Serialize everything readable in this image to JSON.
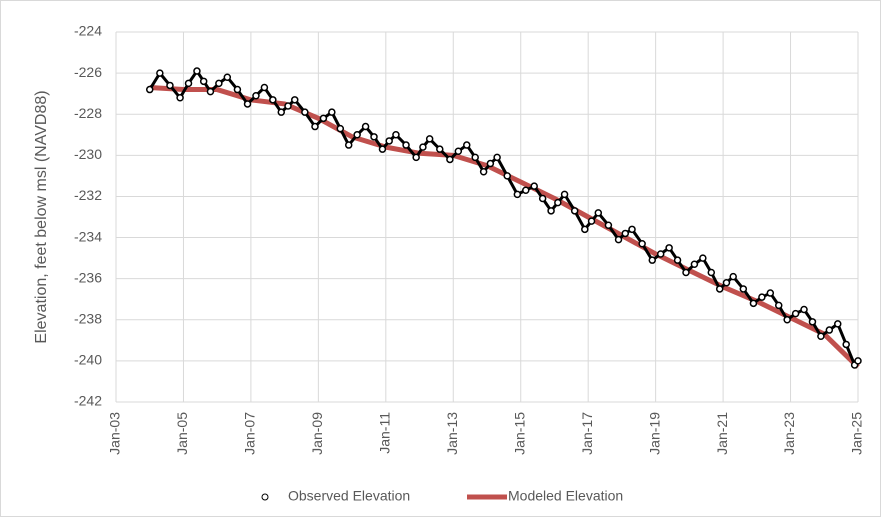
{
  "chart_data": {
    "type": "line",
    "ylabel": "Elevation, feet below msl (NAVD88)",
    "xlim": [
      2003,
      2025
    ],
    "xticks": [
      {
        "value": 2003,
        "label": "Jan-03"
      },
      {
        "value": 2005,
        "label": "Jan-05"
      },
      {
        "value": 2007,
        "label": "Jan-07"
      },
      {
        "value": 2009,
        "label": "Jan-09"
      },
      {
        "value": 2011,
        "label": "Jan-11"
      },
      {
        "value": 2013,
        "label": "Jan-13"
      },
      {
        "value": 2015,
        "label": "Jan-15"
      },
      {
        "value": 2017,
        "label": "Jan-17"
      },
      {
        "value": 2019,
        "label": "Jan-19"
      },
      {
        "value": 2021,
        "label": "Jan-21"
      },
      {
        "value": 2023,
        "label": "Jan-23"
      },
      {
        "value": 2025,
        "label": "Jan-25"
      }
    ],
    "ylim": [
      -242,
      -224
    ],
    "yticks": [
      -242,
      -240,
      -238,
      -236,
      -234,
      -232,
      -230,
      -228,
      -226,
      -224
    ],
    "grid": true,
    "legend": "bottom",
    "series": [
      {
        "name": "Observed Elevation",
        "color": "#000000",
        "marker": "circle",
        "x": [
          2004.0,
          2004.3,
          2004.6,
          2004.9,
          2005.15,
          2005.4,
          2005.6,
          2005.8,
          2006.05,
          2006.3,
          2006.6,
          2006.9,
          2007.15,
          2007.4,
          2007.65,
          2007.9,
          2008.1,
          2008.3,
          2008.6,
          2008.9,
          2009.15,
          2009.4,
          2009.65,
          2009.9,
          2010.15,
          2010.4,
          2010.65,
          2010.9,
          2011.1,
          2011.3,
          2011.6,
          2011.9,
          2012.1,
          2012.3,
          2012.6,
          2012.9,
          2013.15,
          2013.4,
          2013.65,
          2013.9,
          2014.1,
          2014.3,
          2014.6,
          2014.9,
          2015.15,
          2015.4,
          2015.65,
          2015.9,
          2016.1,
          2016.3,
          2016.6,
          2016.9,
          2017.1,
          2017.3,
          2017.6,
          2017.9,
          2018.1,
          2018.3,
          2018.6,
          2018.9,
          2019.15,
          2019.4,
          2019.65,
          2019.9,
          2020.15,
          2020.4,
          2020.65,
          2020.9,
          2021.1,
          2021.3,
          2021.6,
          2021.9,
          2022.15,
          2022.4,
          2022.65,
          2022.9,
          2023.15,
          2023.4,
          2023.65,
          2023.9,
          2024.15,
          2024.4,
          2024.65,
          2024.9,
          2025.0
        ],
        "values": [
          -226.8,
          -226.0,
          -226.6,
          -227.2,
          -226.5,
          -225.9,
          -226.4,
          -226.9,
          -226.5,
          -226.2,
          -226.8,
          -227.5,
          -227.1,
          -226.7,
          -227.3,
          -227.9,
          -227.6,
          -227.3,
          -227.9,
          -228.6,
          -228.2,
          -227.9,
          -228.7,
          -229.5,
          -229.0,
          -228.6,
          -229.1,
          -229.7,
          -229.3,
          -229.0,
          -229.5,
          -230.1,
          -229.6,
          -229.2,
          -229.7,
          -230.2,
          -229.8,
          -229.5,
          -230.1,
          -230.8,
          -230.4,
          -230.1,
          -231.0,
          -231.9,
          -231.7,
          -231.5,
          -232.1,
          -232.7,
          -232.3,
          -231.9,
          -232.7,
          -233.6,
          -233.2,
          -232.8,
          -233.4,
          -234.1,
          -233.8,
          -233.6,
          -234.3,
          -235.1,
          -234.8,
          -234.5,
          -235.1,
          -235.7,
          -235.3,
          -235.0,
          -235.7,
          -236.5,
          -236.2,
          -235.9,
          -236.5,
          -237.2,
          -236.9,
          -236.7,
          -237.3,
          -238.0,
          -237.7,
          -237.5,
          -238.1,
          -238.8,
          -238.5,
          -238.2,
          -239.2,
          -240.2,
          -240.0
        ]
      },
      {
        "name": "Modeled Elevation",
        "color": "#c0504d",
        "marker": "none",
        "x": [
          2004,
          2005,
          2006,
          2007,
          2008,
          2009,
          2010,
          2011,
          2012,
          2013,
          2014,
          2015,
          2016,
          2017,
          2018,
          2019,
          2020,
          2021,
          2022,
          2023,
          2024,
          2025
        ],
        "values": [
          -226.7,
          -226.8,
          -226.8,
          -227.3,
          -227.5,
          -228.2,
          -229.1,
          -229.6,
          -229.9,
          -230.0,
          -230.5,
          -231.3,
          -232.1,
          -233.0,
          -233.9,
          -234.8,
          -235.6,
          -236.4,
          -237.1,
          -237.9,
          -238.7,
          -240.3
        ]
      }
    ]
  }
}
